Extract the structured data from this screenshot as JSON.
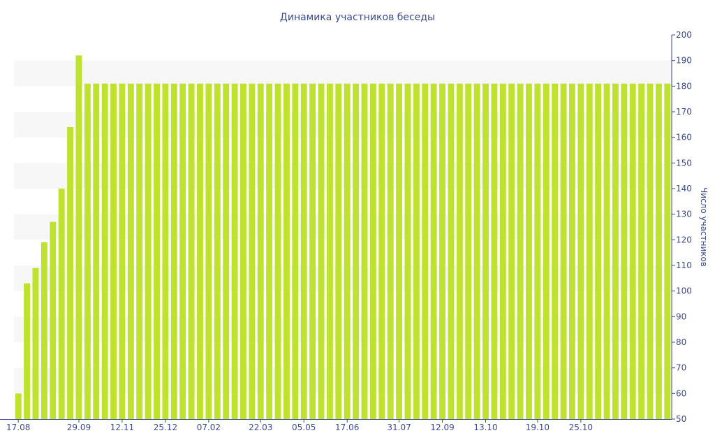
{
  "chart_data": {
    "type": "bar",
    "title": "Динамика участников беседы",
    "ylabel": "Число участников",
    "xlabel": "",
    "ylim": [
      50,
      200
    ],
    "y_ticks": [
      50,
      60,
      70,
      80,
      90,
      100,
      110,
      120,
      130,
      140,
      150,
      160,
      170,
      180,
      190,
      200
    ],
    "x_tick_labels": [
      {
        "label": "17.08",
        "index": 0
      },
      {
        "label": "29.09",
        "index": 7
      },
      {
        "label": "12.11",
        "index": 12
      },
      {
        "label": "25.12",
        "index": 17
      },
      {
        "label": "07.02",
        "index": 22
      },
      {
        "label": "22.03",
        "index": 28
      },
      {
        "label": "05.05",
        "index": 33
      },
      {
        "label": "17.06",
        "index": 38
      },
      {
        "label": "31.07",
        "index": 44
      },
      {
        "label": "12.09",
        "index": 49
      },
      {
        "label": "13.10",
        "index": 54
      },
      {
        "label": "19.10",
        "index": 60
      },
      {
        "label": "25.10",
        "index": 65
      }
    ],
    "values": [
      60,
      103,
      109,
      119,
      127,
      140,
      164,
      192,
      181,
      181,
      181,
      181,
      181,
      181,
      181,
      181,
      181,
      181,
      181,
      181,
      181,
      181,
      181,
      181,
      181,
      181,
      181,
      181,
      181,
      181,
      181,
      181,
      181,
      181,
      181,
      181,
      181,
      181,
      181,
      181,
      181,
      181,
      181,
      181,
      181,
      181,
      181,
      181,
      181,
      181,
      181,
      181,
      181,
      181,
      181,
      181,
      181,
      181,
      181,
      181,
      181,
      181,
      181,
      181,
      181,
      181,
      181,
      181,
      181,
      181,
      181,
      181,
      181,
      181,
      181,
      181
    ],
    "grid": "alternating-bands",
    "legend": "none",
    "colors": {
      "bar": "#bfe22e",
      "band": "#f7f7f7",
      "text": "#3b4a8c",
      "axis": "#3b4a8c"
    }
  }
}
